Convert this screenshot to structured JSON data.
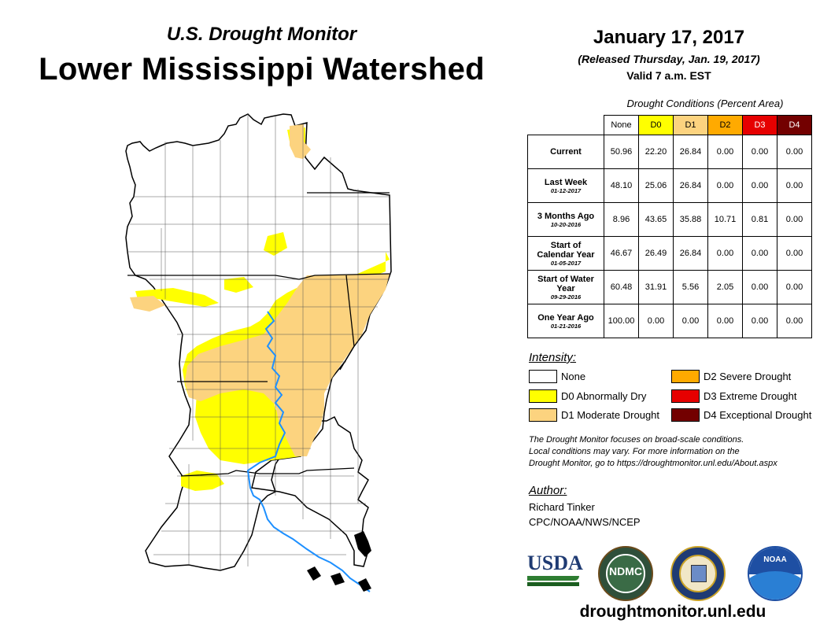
{
  "header": {
    "subtitle": "U.S. Drought Monitor",
    "title": "Lower Mississippi Watershed",
    "date": "January 17, 2017",
    "released": "(Released Thursday, Jan. 19, 2017)",
    "valid": "Valid 7 a.m. EST"
  },
  "table": {
    "caption": "Drought Conditions (Percent Area)",
    "columns": [
      "None",
      "D0",
      "D1",
      "D2",
      "D3",
      "D4"
    ],
    "column_colors": [
      "#ffffff",
      "#ffff00",
      "#fcd37f",
      "#ffaa00",
      "#e60000",
      "#730000"
    ],
    "rows": [
      {
        "label": "Current",
        "date": "",
        "values": [
          "50.96",
          "22.20",
          "26.84",
          "0.00",
          "0.00",
          "0.00"
        ]
      },
      {
        "label": "Last Week",
        "date": "01-12-2017",
        "values": [
          "48.10",
          "25.06",
          "26.84",
          "0.00",
          "0.00",
          "0.00"
        ]
      },
      {
        "label": "3 Months Ago",
        "date": "10-20-2016",
        "values": [
          "8.96",
          "43.65",
          "35.88",
          "10.71",
          "0.81",
          "0.00"
        ]
      },
      {
        "label": "Start of Calendar Year",
        "date": "01-05-2017",
        "values": [
          "46.67",
          "26.49",
          "26.84",
          "0.00",
          "0.00",
          "0.00"
        ]
      },
      {
        "label": "Start of Water Year",
        "date": "09-29-2016",
        "values": [
          "60.48",
          "31.91",
          "5.56",
          "2.05",
          "0.00",
          "0.00"
        ]
      },
      {
        "label": "One Year Ago",
        "date": "01-21-2016",
        "values": [
          "100.00",
          "0.00",
          "0.00",
          "0.00",
          "0.00",
          "0.00"
        ]
      }
    ]
  },
  "legend": {
    "title": "Intensity:",
    "items": [
      {
        "label": "None",
        "color": "#ffffff"
      },
      {
        "label": "D0 Abnormally Dry",
        "color": "#ffff00"
      },
      {
        "label": "D1 Moderate Drought",
        "color": "#fcd37f"
      },
      {
        "label": "D2 Severe Drought",
        "color": "#ffaa00"
      },
      {
        "label": "D3 Extreme Drought",
        "color": "#e60000"
      },
      {
        "label": "D4 Exceptional Drought",
        "color": "#730000"
      }
    ]
  },
  "note": {
    "line1": "The Drought Monitor focuses on broad-scale conditions.",
    "line2": "Local conditions may vary. For more information on the",
    "line3": "Drought Monitor, go to https://droughtmonitor.unl.edu/About.aspx"
  },
  "author": {
    "title": "Author:",
    "name": "Richard Tinker",
    "org": "CPC/NOAA/NWS/NCEP"
  },
  "logos": {
    "usda": "USDA",
    "ndmc": "NDMC",
    "noaa": "NOAA"
  },
  "footer": {
    "url": "droughtmonitor.unl.edu"
  },
  "map": {
    "colors": {
      "none": "#ffffff",
      "d0": "#ffff00",
      "d1": "#fcd37f",
      "river": "#1e90ff",
      "border": "#000000"
    }
  }
}
